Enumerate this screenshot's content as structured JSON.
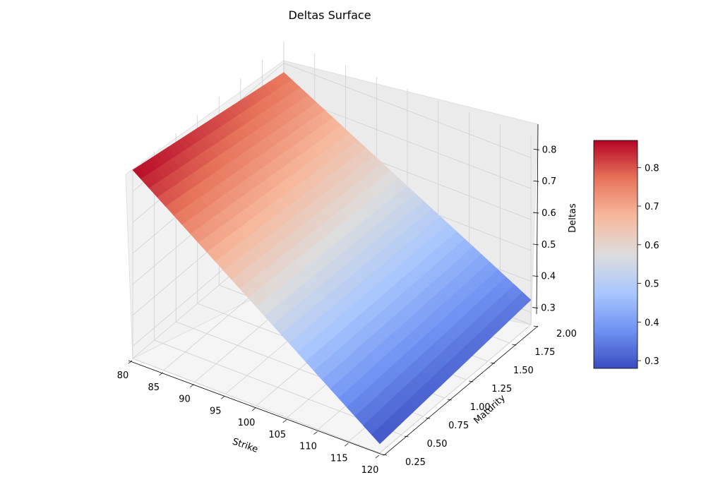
{
  "chart_data": {
    "type": "surface",
    "title": "Deltas Surface",
    "xlabel": "Strike",
    "ylabel": "Maturity",
    "zlabel": "Deltas",
    "x_ticks": [
      "80",
      "85",
      "90",
      "95",
      "100",
      "105",
      "110",
      "115",
      "120"
    ],
    "y_ticks": [
      "0.25",
      "0.50",
      "0.75",
      "1.00",
      "1.25",
      "1.50",
      "1.75",
      "2.00"
    ],
    "z_ticks": [
      "0.3",
      "0.4",
      "0.5",
      "0.6",
      "0.7",
      "0.8"
    ],
    "colorbar_ticks": [
      "0.3",
      "0.4",
      "0.5",
      "0.6",
      "0.7",
      "0.8"
    ],
    "xlim": [
      80,
      120
    ],
    "ylim": [
      0.25,
      2.0
    ],
    "zlim": [
      0.28,
      0.87
    ],
    "corner_values": [
      {
        "strike": 80,
        "maturity": 0.25,
        "delta": 0.87
      },
      {
        "strike": 80,
        "maturity": 2.0,
        "delta": 0.77
      },
      {
        "strike": 120,
        "maturity": 2.0,
        "delta": 0.34
      },
      {
        "strike": 120,
        "maturity": 0.25,
        "delta": 0.29
      }
    ],
    "colormap": "coolwarm",
    "colormap_stops": [
      "#3b4cc0",
      "#6f92f3",
      "#aac7fd",
      "#dddddd",
      "#f7b89c",
      "#e7745b",
      "#b40426"
    ],
    "grid": true,
    "colorbar": "right"
  }
}
